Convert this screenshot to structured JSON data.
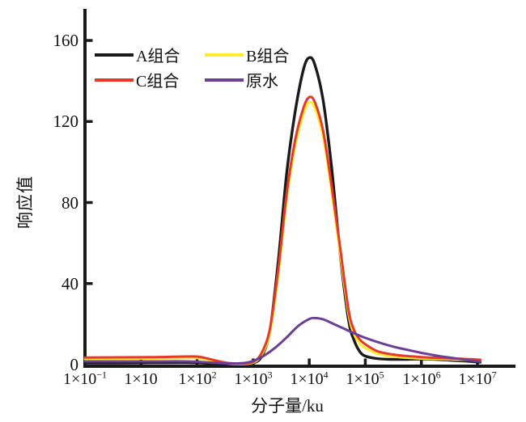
{
  "chart_data": {
    "type": "line",
    "title": "",
    "xlabel": "分子量/ku",
    "ylabel": "响应值",
    "axis_color": "#1a1a1a",
    "background": "#ffffff",
    "grid": false,
    "ylim": [
      0,
      175
    ],
    "y_ticks": [
      "0",
      "40",
      "80",
      "120",
      "160"
    ],
    "x_ticks": [
      {
        "m": "1×10",
        "e": "−1"
      },
      {
        "m": "1×10",
        "e": ""
      },
      {
        "m": "1×10",
        "e": "2"
      },
      {
        "m": "1×10",
        "e": "3"
      },
      {
        "m": "1×10",
        "e": "4"
      },
      {
        "m": "1×10",
        "e": "5"
      },
      {
        "m": "1×10",
        "e": "6"
      },
      {
        "m": "1×10",
        "e": "7"
      }
    ],
    "x_axis_note": "positions 0-7 map to tick labels 1×10⁻¹ through 1×10⁷ (ku), evenly spaced",
    "series": [
      {
        "name": "A组合",
        "color": "#1a1a1a",
        "width": 3.4,
        "points": [
          [
            0,
            0.8
          ],
          [
            0.6,
            0.8
          ],
          [
            1.2,
            0.9
          ],
          [
            1.8,
            1.0
          ],
          [
            2.1,
            0.8
          ],
          [
            2.35,
            0.45
          ],
          [
            2.6,
            0.25
          ],
          [
            2.85,
            0.3
          ],
          [
            3.0,
            0.8
          ],
          [
            3.15,
            4
          ],
          [
            3.3,
            17
          ],
          [
            3.45,
            52
          ],
          [
            3.6,
            95
          ],
          [
            3.75,
            125
          ],
          [
            3.9,
            146
          ],
          [
            4.0,
            151.5
          ],
          [
            4.1,
            148
          ],
          [
            4.25,
            130
          ],
          [
            4.4,
            97
          ],
          [
            4.55,
            55
          ],
          [
            4.7,
            22
          ],
          [
            4.8,
            12
          ],
          [
            4.9,
            6.5
          ],
          [
            5.0,
            4.2
          ],
          [
            5.2,
            3.0
          ],
          [
            5.45,
            2.6
          ],
          [
            5.7,
            2.6
          ],
          [
            6.0,
            2.8
          ],
          [
            6.25,
            2.6
          ],
          [
            6.5,
            2.2
          ],
          [
            6.8,
            1.7
          ],
          [
            7.05,
            1.2
          ]
        ]
      },
      {
        "name": "B组合",
        "color": "#ffec2e",
        "width": 3,
        "points": [
          [
            0,
            2.8
          ],
          [
            0.6,
            2.9
          ],
          [
            1.2,
            3.0
          ],
          [
            1.8,
            3.3
          ],
          [
            2.05,
            3.1
          ],
          [
            2.3,
            1.7
          ],
          [
            2.55,
            0.5
          ],
          [
            2.8,
            0.3
          ],
          [
            3.0,
            1.0
          ],
          [
            3.15,
            4.8
          ],
          [
            3.3,
            16
          ],
          [
            3.45,
            45
          ],
          [
            3.6,
            82
          ],
          [
            3.75,
            108
          ],
          [
            3.9,
            124
          ],
          [
            4.0,
            129.5
          ],
          [
            4.1,
            126.5
          ],
          [
            4.25,
            112
          ],
          [
            4.4,
            85
          ],
          [
            4.55,
            55
          ],
          [
            4.7,
            25
          ],
          [
            4.8,
            15
          ],
          [
            4.9,
            10.5
          ],
          [
            5.0,
            8.2
          ],
          [
            5.2,
            5.6
          ],
          [
            5.4,
            4.4
          ],
          [
            5.6,
            3.7
          ],
          [
            5.8,
            3.3
          ],
          [
            6.0,
            3.0
          ],
          [
            6.3,
            2.8
          ],
          [
            6.6,
            2.5
          ],
          [
            6.85,
            2.2
          ],
          [
            7.05,
            1.9
          ]
        ]
      },
      {
        "name": "C组合",
        "color": "#e9382b",
        "width": 3,
        "points": [
          [
            0,
            3.5
          ],
          [
            0.6,
            3.6
          ],
          [
            1.2,
            3.7
          ],
          [
            1.8,
            4.0
          ],
          [
            2.05,
            3.8
          ],
          [
            2.3,
            2.2
          ],
          [
            2.55,
            0.8
          ],
          [
            2.8,
            0.55
          ],
          [
            3.0,
            1.4
          ],
          [
            3.15,
            5.8
          ],
          [
            3.3,
            18
          ],
          [
            3.45,
            48
          ],
          [
            3.6,
            85
          ],
          [
            3.75,
            111
          ],
          [
            3.9,
            127
          ],
          [
            4.0,
            132
          ],
          [
            4.1,
            129.5
          ],
          [
            4.25,
            115
          ],
          [
            4.4,
            88
          ],
          [
            4.55,
            58
          ],
          [
            4.7,
            27
          ],
          [
            4.8,
            17
          ],
          [
            4.9,
            12.5
          ],
          [
            5.0,
            10
          ],
          [
            5.2,
            6.8
          ],
          [
            5.4,
            5.4
          ],
          [
            5.6,
            4.6
          ],
          [
            5.8,
            4.1
          ],
          [
            6.0,
            3.7
          ],
          [
            6.3,
            3.3
          ],
          [
            6.6,
            3.0
          ],
          [
            6.85,
            2.7
          ],
          [
            7.05,
            2.4
          ]
        ]
      },
      {
        "name": "原水",
        "color": "#6b3f98",
        "width": 3,
        "points": [
          [
            0,
            1.6
          ],
          [
            0.6,
            1.6
          ],
          [
            1.2,
            1.6
          ],
          [
            1.8,
            1.6
          ],
          [
            2.2,
            1.1
          ],
          [
            2.5,
            0.6
          ],
          [
            2.8,
            0.7
          ],
          [
            3.0,
            1.8
          ],
          [
            3.2,
            4.5
          ],
          [
            3.4,
            8.5
          ],
          [
            3.6,
            13.5
          ],
          [
            3.8,
            19
          ],
          [
            4.0,
            22.5
          ],
          [
            4.1,
            23
          ],
          [
            4.25,
            22.3
          ],
          [
            4.4,
            20.5
          ],
          [
            4.6,
            18
          ],
          [
            4.8,
            15.5
          ],
          [
            5.0,
            13.2
          ],
          [
            5.2,
            11.3
          ],
          [
            5.4,
            9.6
          ],
          [
            5.6,
            8.2
          ],
          [
            5.8,
            7.0
          ],
          [
            6.0,
            5.8
          ],
          [
            6.3,
            4.3
          ],
          [
            6.6,
            3.1
          ],
          [
            6.85,
            2.1
          ],
          [
            7.05,
            1.4
          ]
        ]
      }
    ],
    "legend": {
      "position": "top-left",
      "items": [
        {
          "label": "A组合",
          "color": "#1a1a1a"
        },
        {
          "label": "B组合",
          "color": "#ffec2e"
        },
        {
          "label": "C组合",
          "color": "#e9382b"
        },
        {
          "label": "原水",
          "color": "#6b3f98"
        }
      ]
    }
  }
}
